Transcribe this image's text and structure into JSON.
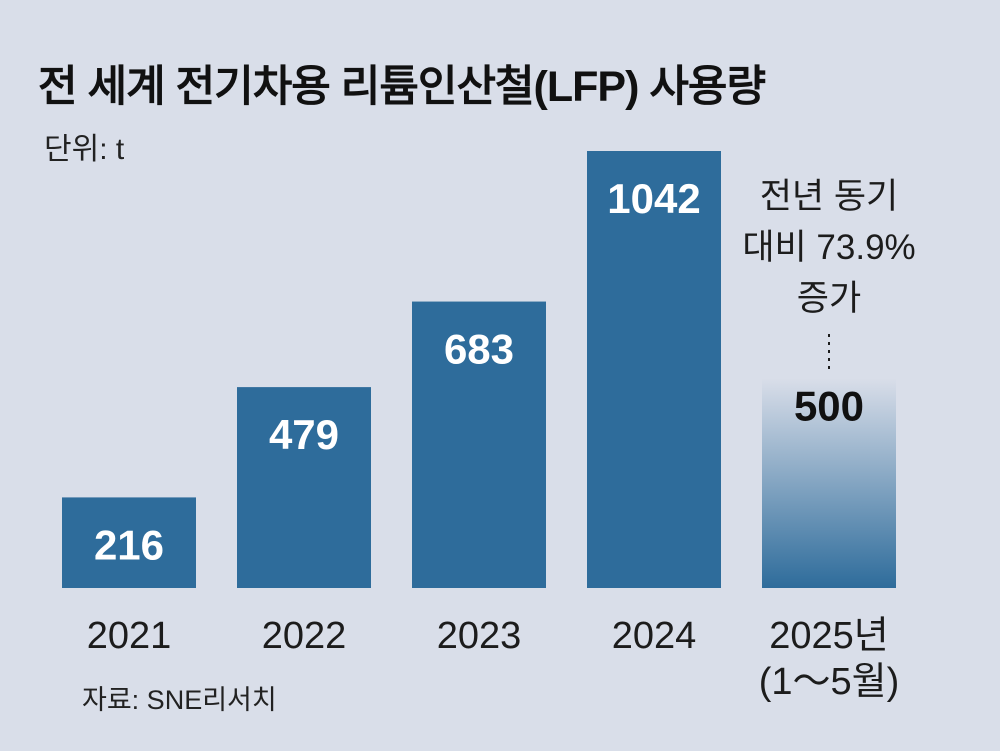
{
  "chart_data": {
    "type": "bar",
    "title": "전 세계 전기차용 리튬인산철(LFP) 사용량",
    "unit_label": "단위: t",
    "source": "자료: SNE리서치",
    "categories": [
      "2021",
      "2022",
      "2023",
      "2024",
      "2025년 (1~5월)"
    ],
    "category_lines": [
      [
        "2021"
      ],
      [
        "2022"
      ],
      [
        "2023"
      ],
      [
        "2024"
      ],
      [
        "2025년",
        "(1～5월)"
      ]
    ],
    "values": [
      216,
      479,
      683,
      1042,
      500
    ],
    "data_labels": [
      "216",
      "479",
      "683",
      "1042",
      "500"
    ],
    "partial_year_index": 4,
    "ylim": [
      0,
      1042
    ],
    "xlabel": "",
    "ylabel": "",
    "annotation": {
      "target_index": 4,
      "lines": [
        "전년 동기",
        "대비 73.9%",
        "증가"
      ]
    },
    "colors": {
      "bar": "#2e6c9b",
      "partial_bar_top": "#d9dee9",
      "partial_bar_bottom": "#2e6c9b",
      "label_on_bar": "#ffffff",
      "label_on_light": "#111111"
    }
  }
}
